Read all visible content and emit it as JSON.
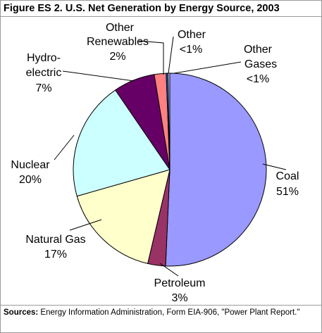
{
  "figure": {
    "title": "Figure ES 2. U.S. Net Generation by Energy Source, 2003",
    "source_label": "Sources:",
    "source_text": "Energy Information Administration, Form EIA-906, \"Power Plant Report.\""
  },
  "chart_data": {
    "type": "pie",
    "title": "Figure ES 2. U.S. Net Generation by Energy Source, 2003",
    "start": "12 o'clock, clockwise",
    "slices": [
      {
        "name": "Coal",
        "value": 51,
        "label": "51%",
        "color": "#9999ff"
      },
      {
        "name": "Petroleum",
        "value": 3,
        "label": "3%",
        "color": "#993366"
      },
      {
        "name": "Natural Gas",
        "value": 17,
        "label": "17%",
        "color": "#ffffcc"
      },
      {
        "name": "Nuclear",
        "value": 20,
        "label": "20%",
        "color": "#ccffff"
      },
      {
        "name": "Hydroelectric",
        "value": 7,
        "label": "7%",
        "color": "#660066"
      },
      {
        "name": "Other Renewables",
        "value": 2,
        "label": "2%",
        "color": "#ff8080"
      },
      {
        "name": "Other",
        "value": 0.3,
        "label": "<1%",
        "color": "#0066cc"
      },
      {
        "name": "Other Gases",
        "value": 0.3,
        "label": "<1%",
        "color": "#ccccff"
      }
    ]
  },
  "labels": {
    "coal": {
      "name": "Coal",
      "pct": "51%"
    },
    "petroleum": {
      "name": "Petroleum",
      "pct": "3%"
    },
    "natural_gas": {
      "name": "Natural Gas",
      "pct": "17%"
    },
    "nuclear": {
      "name": "Nuclear",
      "pct": "20%"
    },
    "hydro": {
      "line1": "Hydro-",
      "line2": "electric",
      "pct": "7%"
    },
    "other_renewables": {
      "line1": "Other",
      "line2": "Renewables",
      "pct": "2%"
    },
    "other": {
      "name": "Other",
      "pct": "<1%"
    },
    "other_gases": {
      "line1": "Other",
      "line2": "Gases",
      "pct": "<1%"
    }
  }
}
